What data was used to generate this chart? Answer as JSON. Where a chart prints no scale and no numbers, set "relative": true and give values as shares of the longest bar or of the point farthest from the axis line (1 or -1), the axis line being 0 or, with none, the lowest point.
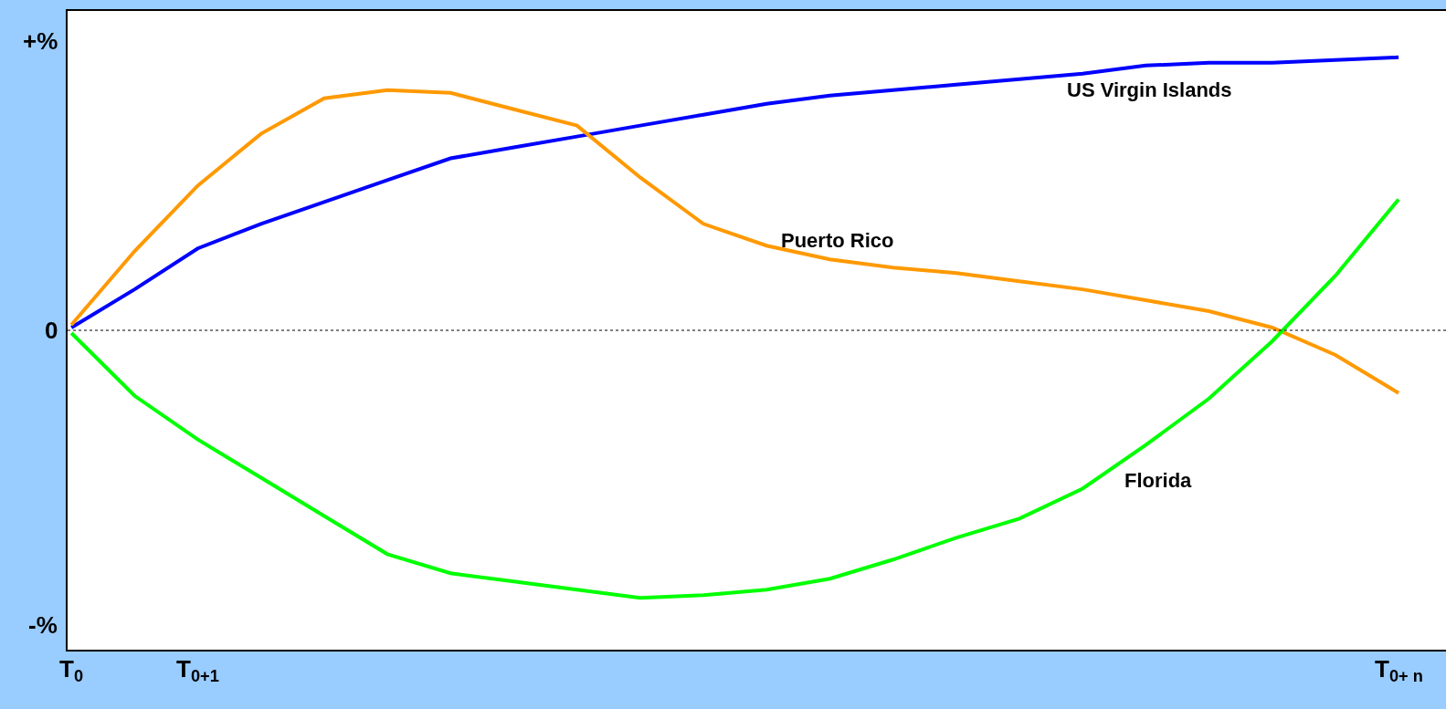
{
  "chart_data": {
    "type": "line",
    "relative": true,
    "categories": [
      "T$_{0}$",
      null,
      "T$_{0+1}$",
      null,
      null,
      null,
      null,
      null,
      null,
      null,
      null,
      null,
      null,
      null,
      null,
      null,
      null,
      null,
      null,
      null,
      null,
      "T$_{0+ n}$"
    ],
    "series": [
      {
        "name": "US Virgin Islands",
        "color": "#0000ff",
        "values": [
          0.01,
          0.15,
          0.3,
          0.39,
          0.47,
          0.55,
          0.63,
          0.67,
          0.71,
          0.75,
          0.79,
          0.83,
          0.86,
          0.88,
          0.9,
          0.92,
          0.94,
          0.97,
          0.98,
          0.98,
          0.99,
          1.0
        ]
      },
      {
        "name": "Puerto Rico",
        "color": "#ff9900",
        "values": [
          0.02,
          0.29,
          0.53,
          0.72,
          0.85,
          0.88,
          0.87,
          0.81,
          0.75,
          0.56,
          0.39,
          0.31,
          0.26,
          0.23,
          0.21,
          0.18,
          0.15,
          0.11,
          0.07,
          0.01,
          -0.09,
          -0.23
        ]
      },
      {
        "name": "Florida",
        "color": "#00ff00",
        "values": [
          -0.01,
          -0.24,
          -0.4,
          -0.54,
          -0.68,
          -0.82,
          -0.89,
          -0.92,
          -0.95,
          -0.98,
          -0.97,
          -0.95,
          -0.91,
          -0.84,
          -0.76,
          -0.69,
          -0.58,
          -0.42,
          -0.25,
          -0.04,
          0.2,
          0.48
        ]
      }
    ],
    "ref_lines": [
      {
        "axis": "y",
        "value": 0,
        "label": "0",
        "color": "#000000",
        "line_style": "dotted"
      }
    ],
    "annotations": [
      "+%",
      "-%"
    ],
    "legend": false,
    "line_style": "solid"
  }
}
